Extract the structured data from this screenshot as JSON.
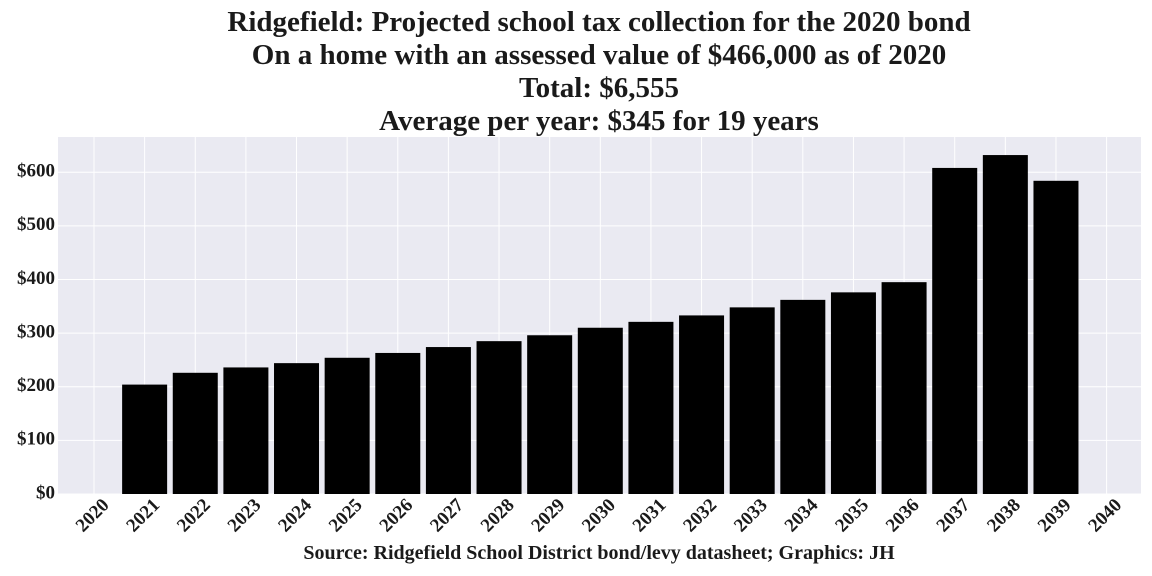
{
  "chart_data": {
    "type": "bar",
    "title_lines": [
      "Ridgefield: Projected school tax collection for the 2020 bond",
      "On a home with an assessed value of $466,000 as of 2020",
      "Total: $6,555",
      "Average per year: $345 for 19 years"
    ],
    "categories": [
      "2020",
      "2021",
      "2022",
      "2023",
      "2024",
      "2025",
      "2026",
      "2027",
      "2028",
      "2029",
      "2030",
      "2031",
      "2032",
      "2033",
      "2034",
      "2035",
      "2036",
      "2037",
      "2038",
      "2039",
      "2040"
    ],
    "values": [
      0,
      204,
      226,
      236,
      244,
      254,
      263,
      274,
      285,
      296,
      310,
      321,
      333,
      348,
      362,
      376,
      395,
      608,
      632,
      584,
      0
    ],
    "y_ticks": [
      "$0",
      "$100",
      "$200",
      "$300",
      "$400",
      "$500",
      "$600"
    ],
    "y_tick_values": [
      0,
      100,
      200,
      300,
      400,
      500,
      600
    ],
    "ylim": [
      0,
      665
    ],
    "xlabel": "",
    "ylabel": "",
    "source": "Source: Ridgefield School District bond/levy datasheet; Graphics: JH",
    "grid": true,
    "colors": {
      "bar": "#000000",
      "plot_background": "#eaeaf2",
      "grid": "#ffffff"
    }
  }
}
